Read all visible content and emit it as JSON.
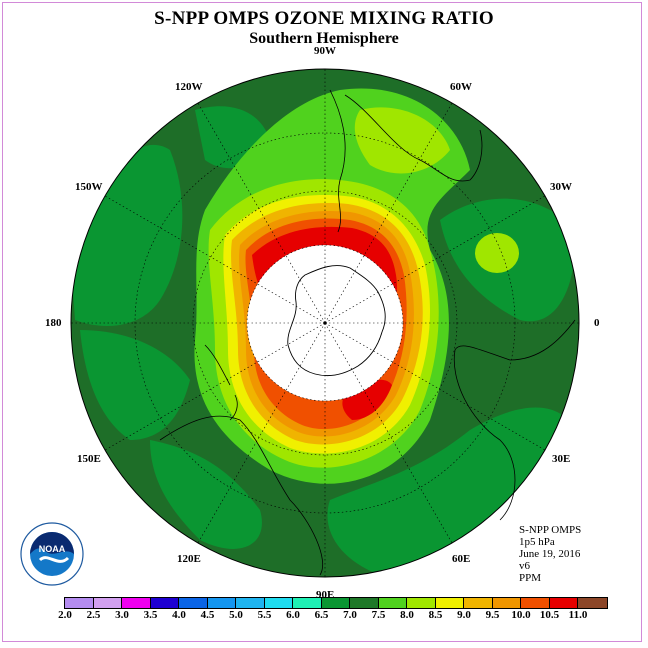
{
  "title": "S-NPP OMPS OZONE MIXING RATIO",
  "subtitle": "Southern Hemisphere",
  "longitude_labels": [
    {
      "text": "90W",
      "angle": 270
    },
    {
      "text": "60W",
      "angle": 300
    },
    {
      "text": "30W",
      "angle": 330
    },
    {
      "text": "0",
      "angle": 0
    },
    {
      "text": "30E",
      "angle": 30
    },
    {
      "text": "60E",
      "angle": 60
    },
    {
      "text": "90E",
      "angle": 90
    },
    {
      "text": "120E",
      "angle": 120
    },
    {
      "text": "150E",
      "angle": 150
    },
    {
      "text": "180",
      "angle": 180
    },
    {
      "text": "150W",
      "angle": 210
    },
    {
      "text": "120W",
      "angle": 240
    }
  ],
  "info": {
    "instrument": "S-NPP OMPS",
    "pressure": "1p5 hPa",
    "date": "June 19, 2016",
    "version": "v6",
    "units": "PPM"
  },
  "colorbar": {
    "ticks": [
      "2.0",
      "2.5",
      "3.0",
      "3.5",
      "4.0",
      "4.5",
      "5.0",
      "5.5",
      "6.0",
      "6.5",
      "7.0",
      "7.5",
      "8.0",
      "8.5",
      "9.0",
      "9.5",
      "10.0",
      "10.5",
      "11.0"
    ],
    "colors": [
      "#b48cf0",
      "#d2a0f0",
      "#f000f0",
      "#1e00d2",
      "#0a64e6",
      "#1496f0",
      "#1eb4f0",
      "#1edcf0",
      "#1ef0b4",
      "#0a9632",
      "#1e7828",
      "#50d21e",
      "#a0e600",
      "#f0f000",
      "#f0b400",
      "#f09600",
      "#f05000",
      "#e60000",
      "#8c4628"
    ]
  },
  "logo": {
    "text": "NOAA",
    "ring_text": "NATIONAL OCEANIC AND ATMOSPHERIC ADMINISTRATION",
    "ring_text_bottom": "U.S. DEPARTMENT OF COMMERCE"
  }
}
